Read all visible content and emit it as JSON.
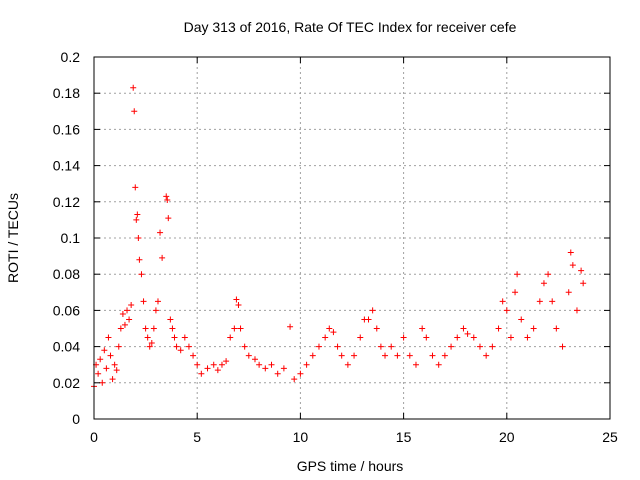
{
  "chart_data": {
    "type": "scatter",
    "title": "Day 313 of 2016, Rate Of TEC Index for receiver cefe",
    "xlabel": "GPS time / hours",
    "ylabel": "ROTI / TECUs",
    "xlim": [
      0,
      25
    ],
    "ylim": [
      0,
      0.2
    ],
    "grid": true,
    "marker": "+",
    "color": "#ff0000",
    "x_ticks": [
      0,
      5,
      10,
      15,
      20,
      25
    ],
    "x_tick_labels": [
      "0",
      "5",
      "10",
      "15",
      "20",
      "25"
    ],
    "y_ticks": [
      0,
      0.02,
      0.04,
      0.06,
      0.08,
      0.1,
      0.12,
      0.14,
      0.16,
      0.18,
      0.2
    ],
    "y_tick_labels": [
      "0",
      "0.02",
      "0.04",
      "0.06",
      "0.08",
      "0.1",
      "0.12",
      "0.14",
      "0.16",
      "0.18",
      "0.2"
    ],
    "series": [
      {
        "name": "ROTI",
        "points": [
          [
            0.0,
            0.018
          ],
          [
            0.1,
            0.03
          ],
          [
            0.2,
            0.025
          ],
          [
            0.3,
            0.033
          ],
          [
            0.4,
            0.02
          ],
          [
            0.5,
            0.038
          ],
          [
            0.6,
            0.028
          ],
          [
            0.7,
            0.045
          ],
          [
            0.8,
            0.035
          ],
          [
            0.9,
            0.022
          ],
          [
            1.0,
            0.03
          ],
          [
            1.1,
            0.027
          ],
          [
            1.2,
            0.04
          ],
          [
            1.3,
            0.05
          ],
          [
            1.4,
            0.058
          ],
          [
            1.5,
            0.052
          ],
          [
            1.6,
            0.06
          ],
          [
            1.7,
            0.055
          ],
          [
            1.8,
            0.063
          ],
          [
            1.9,
            0.183
          ],
          [
            1.95,
            0.17
          ],
          [
            2.0,
            0.128
          ],
          [
            2.05,
            0.11
          ],
          [
            2.1,
            0.113
          ],
          [
            2.15,
            0.1
          ],
          [
            2.2,
            0.088
          ],
          [
            2.3,
            0.08
          ],
          [
            2.4,
            0.065
          ],
          [
            2.5,
            0.05
          ],
          [
            2.6,
            0.045
          ],
          [
            2.7,
            0.04
          ],
          [
            2.8,
            0.042
          ],
          [
            2.9,
            0.05
          ],
          [
            3.0,
            0.06
          ],
          [
            3.1,
            0.065
          ],
          [
            3.2,
            0.103
          ],
          [
            3.3,
            0.089
          ],
          [
            3.5,
            0.123
          ],
          [
            3.55,
            0.121
          ],
          [
            3.6,
            0.111
          ],
          [
            3.7,
            0.055
          ],
          [
            3.8,
            0.05
          ],
          [
            3.9,
            0.045
          ],
          [
            4.0,
            0.04
          ],
          [
            4.2,
            0.038
          ],
          [
            4.4,
            0.045
          ],
          [
            4.6,
            0.04
          ],
          [
            4.8,
            0.035
          ],
          [
            5.0,
            0.03
          ],
          [
            5.2,
            0.025
          ],
          [
            5.5,
            0.028
          ],
          [
            5.8,
            0.03
          ],
          [
            6.0,
            0.027
          ],
          [
            6.2,
            0.03
          ],
          [
            6.4,
            0.032
          ],
          [
            6.6,
            0.045
          ],
          [
            6.8,
            0.05
          ],
          [
            6.9,
            0.066
          ],
          [
            7.0,
            0.063
          ],
          [
            7.1,
            0.05
          ],
          [
            7.3,
            0.04
          ],
          [
            7.5,
            0.035
          ],
          [
            7.8,
            0.033
          ],
          [
            8.0,
            0.03
          ],
          [
            8.3,
            0.028
          ],
          [
            8.6,
            0.03
          ],
          [
            8.9,
            0.025
          ],
          [
            9.2,
            0.028
          ],
          [
            9.5,
            0.051
          ],
          [
            9.7,
            0.022
          ],
          [
            10.0,
            0.025
          ],
          [
            10.3,
            0.03
          ],
          [
            10.6,
            0.035
          ],
          [
            10.9,
            0.04
          ],
          [
            11.2,
            0.045
          ],
          [
            11.4,
            0.05
          ],
          [
            11.6,
            0.048
          ],
          [
            11.8,
            0.04
          ],
          [
            12.0,
            0.035
          ],
          [
            12.3,
            0.03
          ],
          [
            12.6,
            0.035
          ],
          [
            12.9,
            0.045
          ],
          [
            13.1,
            0.055
          ],
          [
            13.3,
            0.055
          ],
          [
            13.5,
            0.06
          ],
          [
            13.7,
            0.05
          ],
          [
            13.9,
            0.04
          ],
          [
            14.1,
            0.035
          ],
          [
            14.4,
            0.04
          ],
          [
            14.7,
            0.035
          ],
          [
            15.0,
            0.045
          ],
          [
            15.3,
            0.035
          ],
          [
            15.6,
            0.03
          ],
          [
            15.9,
            0.05
          ],
          [
            16.1,
            0.045
          ],
          [
            16.4,
            0.035
          ],
          [
            16.7,
            0.03
          ],
          [
            17.0,
            0.035
          ],
          [
            17.3,
            0.04
          ],
          [
            17.6,
            0.045
          ],
          [
            17.9,
            0.05
          ],
          [
            18.1,
            0.047
          ],
          [
            18.4,
            0.045
          ],
          [
            18.7,
            0.04
          ],
          [
            19.0,
            0.035
          ],
          [
            19.3,
            0.04
          ],
          [
            19.6,
            0.05
          ],
          [
            19.8,
            0.065
          ],
          [
            20.0,
            0.06
          ],
          [
            20.2,
            0.045
          ],
          [
            20.4,
            0.07
          ],
          [
            20.5,
            0.08
          ],
          [
            20.7,
            0.055
          ],
          [
            21.0,
            0.045
          ],
          [
            21.3,
            0.05
          ],
          [
            21.6,
            0.065
          ],
          [
            21.8,
            0.075
          ],
          [
            22.0,
            0.08
          ],
          [
            22.2,
            0.065
          ],
          [
            22.4,
            0.05
          ],
          [
            22.7,
            0.04
          ],
          [
            23.0,
            0.07
          ],
          [
            23.1,
            0.092
          ],
          [
            23.2,
            0.085
          ],
          [
            23.4,
            0.06
          ],
          [
            23.6,
            0.082
          ],
          [
            23.7,
            0.075
          ]
        ]
      }
    ]
  }
}
